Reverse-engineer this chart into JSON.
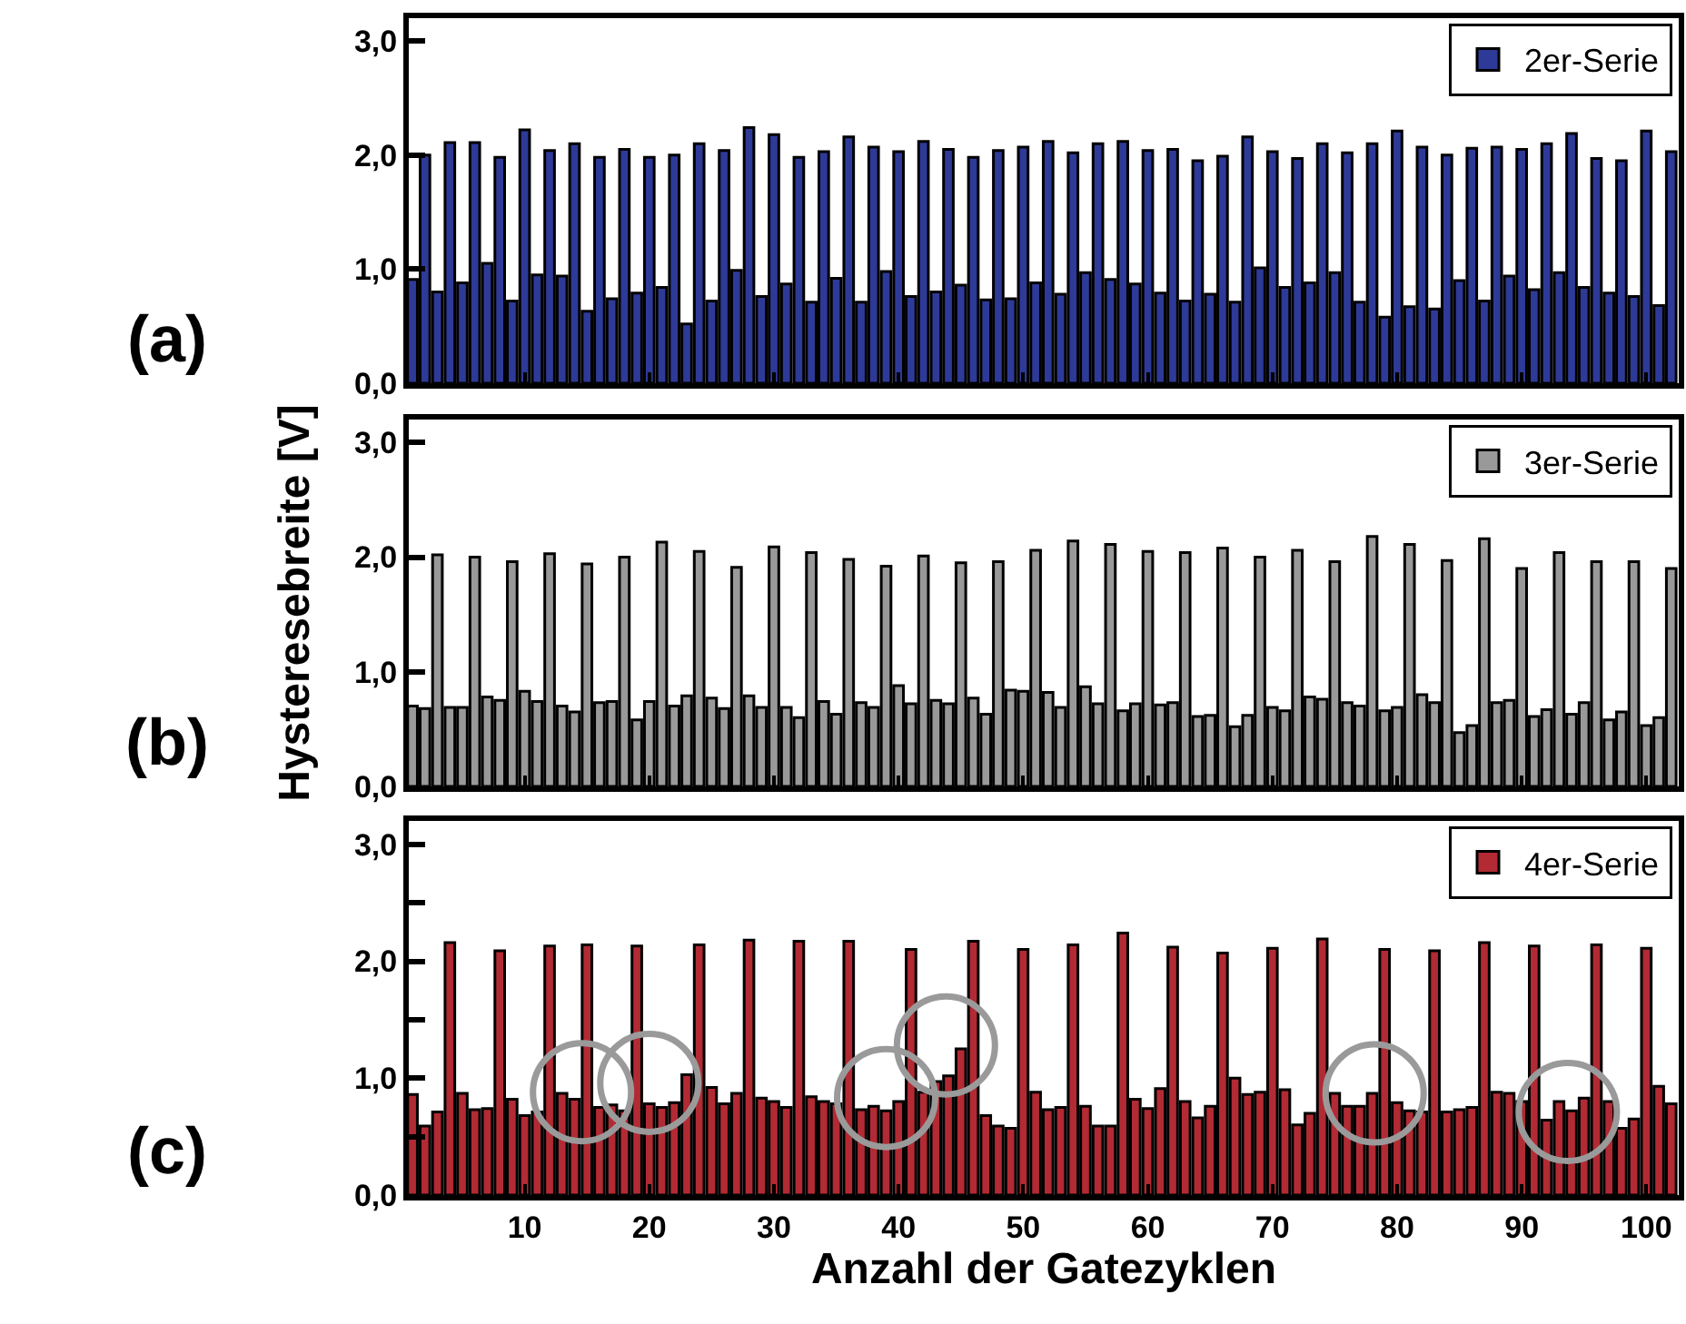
{
  "chart_data": [
    {
      "type": "bar",
      "annotations": [
        "(a)"
      ],
      "x": [
        1,
        2,
        3,
        4,
        5,
        6,
        7,
        8,
        9,
        10,
        11,
        12,
        13,
        14,
        15,
        16,
        17,
        18,
        19,
        20,
        21,
        22,
        23,
        24,
        25,
        26,
        27,
        28,
        29,
        30,
        31,
        32,
        33,
        34,
        35,
        36,
        37,
        38,
        39,
        40,
        41,
        42,
        43,
        44,
        45,
        46,
        47,
        48,
        49,
        50,
        51,
        52,
        53,
        54,
        55,
        56,
        57,
        58,
        59,
        60,
        61,
        62,
        63,
        64,
        65,
        66,
        67,
        68,
        69,
        70,
        71,
        72,
        73,
        74,
        75,
        76,
        77,
        78,
        79,
        80,
        81,
        82,
        83,
        84,
        85,
        86,
        87,
        88,
        89,
        90,
        91,
        92,
        93,
        94,
        95,
        96,
        97,
        98,
        99,
        100,
        101,
        102
      ],
      "series": [
        {
          "name": "2er-Serie",
          "color": "#2e3a97",
          "values": [
            0.91,
            2.0,
            0.8,
            2.11,
            0.88,
            2.11,
            1.05,
            1.98,
            0.72,
            2.22,
            0.95,
            2.04,
            0.94,
            2.1,
            0.63,
            1.98,
            0.74,
            2.05,
            0.79,
            1.98,
            0.84,
            2.0,
            0.52,
            2.1,
            0.72,
            2.04,
            0.99,
            2.24,
            0.76,
            2.18,
            0.87,
            1.98,
            0.71,
            2.03,
            0.92,
            2.16,
            0.71,
            2.07,
            0.98,
            2.03,
            0.76,
            2.12,
            0.8,
            2.05,
            0.86,
            1.98,
            0.73,
            2.04,
            0.74,
            2.07,
            0.88,
            2.12,
            0.78,
            2.02,
            0.97,
            2.1,
            0.91,
            2.12,
            0.87,
            2.04,
            0.79,
            2.05,
            0.72,
            1.95,
            0.78,
            1.99,
            0.71,
            2.16,
            1.01,
            2.03,
            0.84,
            1.97,
            0.88,
            2.1,
            0.97,
            2.02,
            0.71,
            2.1,
            0.58,
            2.21,
            0.67,
            2.07,
            0.65,
            2.0,
            0.9,
            2.06,
            0.72,
            2.07,
            0.94,
            2.05,
            0.82,
            2.1,
            0.97,
            2.19,
            0.84,
            1.97,
            0.79,
            1.95,
            0.76,
            2.21,
            0.68,
            2.03
          ]
        }
      ],
      "xlim": [
        0.7,
        102.6
      ],
      "ylim": [
        0,
        3.2
      ],
      "xticks": [
        10,
        20,
        30,
        40,
        50,
        60,
        70,
        80,
        90,
        100
      ],
      "yticks": [
        {
          "value": 0,
          "label": "0,0"
        },
        {
          "value": 1,
          "label": "1,0"
        },
        {
          "value": 2,
          "label": "2,0"
        },
        {
          "value": 3,
          "label": "3,0"
        }
      ],
      "tick_labels": "y",
      "legend": "top right"
    },
    {
      "type": "bar",
      "annotations": [
        "(b)"
      ],
      "ylabel": "Hysteresebreite [V]",
      "x": [
        1,
        2,
        3,
        4,
        5,
        6,
        7,
        8,
        9,
        10,
        11,
        12,
        13,
        14,
        15,
        16,
        17,
        18,
        19,
        20,
        21,
        22,
        23,
        24,
        25,
        26,
        27,
        28,
        29,
        30,
        31,
        32,
        33,
        34,
        35,
        36,
        37,
        38,
        39,
        40,
        41,
        42,
        43,
        44,
        45,
        46,
        47,
        48,
        49,
        50,
        51,
        52,
        53,
        54,
        55,
        56,
        57,
        58,
        59,
        60,
        61,
        62,
        63,
        64,
        65,
        66,
        67,
        68,
        69,
        70,
        71,
        72,
        73,
        74,
        75,
        76,
        77,
        78,
        79,
        80,
        81,
        82,
        83,
        84,
        85,
        86,
        87,
        88,
        89,
        90,
        91,
        92,
        93,
        94,
        95,
        96,
        97,
        98,
        99,
        100,
        101,
        102
      ],
      "series": [
        {
          "name": "3er-Serie",
          "color": "#999999",
          "values": [
            0.7,
            0.68,
            2.02,
            0.69,
            0.69,
            2.0,
            0.78,
            0.75,
            1.96,
            0.83,
            0.74,
            2.03,
            0.7,
            0.65,
            1.94,
            0.73,
            0.74,
            2.0,
            0.58,
            0.74,
            2.13,
            0.7,
            0.79,
            2.05,
            0.77,
            0.68,
            1.91,
            0.79,
            0.69,
            2.09,
            0.69,
            0.6,
            2.04,
            0.74,
            0.63,
            1.98,
            0.73,
            0.69,
            1.92,
            0.88,
            0.72,
            2.01,
            0.75,
            0.72,
            1.95,
            0.77,
            0.63,
            1.96,
            0.84,
            0.83,
            2.06,
            0.82,
            0.69,
            2.14,
            0.87,
            0.72,
            2.11,
            0.66,
            0.72,
            2.05,
            0.71,
            0.73,
            2.04,
            0.61,
            0.62,
            2.08,
            0.52,
            0.62,
            2.0,
            0.69,
            0.66,
            2.06,
            0.78,
            0.76,
            1.96,
            0.73,
            0.7,
            2.18,
            0.66,
            0.69,
            2.11,
            0.8,
            0.73,
            1.97,
            0.47,
            0.53,
            2.16,
            0.73,
            0.75,
            1.9,
            0.61,
            0.67,
            2.04,
            0.63,
            0.73,
            1.96,
            0.58,
            0.65,
            1.96,
            0.53,
            0.6,
            1.9
          ]
        }
      ],
      "xlim": [
        0.7,
        102.6
      ],
      "ylim": [
        0,
        3.2
      ],
      "xticks": [
        10,
        20,
        30,
        40,
        50,
        60,
        70,
        80,
        90,
        100
      ],
      "yticks": [
        {
          "value": 0,
          "label": "0,0"
        },
        {
          "value": 1,
          "label": "1,0"
        },
        {
          "value": 2,
          "label": "2,0"
        },
        {
          "value": 3,
          "label": "3,0"
        }
      ],
      "tick_labels": "y",
      "legend": "top right"
    },
    {
      "type": "bar",
      "annotations": [
        "(c)"
      ],
      "xlabel": "Anzahl der Gatezyklen",
      "x": [
        1,
        2,
        3,
        4,
        5,
        6,
        7,
        8,
        9,
        10,
        11,
        12,
        13,
        14,
        15,
        16,
        17,
        18,
        19,
        20,
        21,
        22,
        23,
        24,
        25,
        26,
        27,
        28,
        29,
        30,
        31,
        32,
        33,
        34,
        35,
        36,
        37,
        38,
        39,
        40,
        41,
        42,
        43,
        44,
        45,
        46,
        47,
        48,
        49,
        50,
        51,
        52,
        53,
        54,
        55,
        56,
        57,
        58,
        59,
        60,
        61,
        62,
        63,
        64,
        65,
        66,
        67,
        68,
        69,
        70,
        71,
        72,
        73,
        74,
        75,
        76,
        77,
        78,
        79,
        80,
        81,
        82,
        83,
        84,
        85,
        86,
        87,
        88,
        89,
        90,
        91,
        92,
        93,
        94,
        95,
        96,
        97,
        98,
        99,
        100,
        101,
        102
      ],
      "series": [
        {
          "name": "4er-Serie",
          "color": "#b22a33",
          "values": [
            0.86,
            0.59,
            0.71,
            2.16,
            0.87,
            0.73,
            0.74,
            2.09,
            0.82,
            0.68,
            0.71,
            2.13,
            0.87,
            0.82,
            2.14,
            0.75,
            0.77,
            0.72,
            2.13,
            0.78,
            0.75,
            0.79,
            1.03,
            2.14,
            0.92,
            0.78,
            0.87,
            2.18,
            0.83,
            0.8,
            0.75,
            2.17,
            0.84,
            0.8,
            0.78,
            2.17,
            0.73,
            0.76,
            0.72,
            0.8,
            2.1,
            0.88,
            0.97,
            1.02,
            1.25,
            2.17,
            0.68,
            0.59,
            0.57,
            2.1,
            0.88,
            0.73,
            0.75,
            2.14,
            0.76,
            0.59,
            0.59,
            2.24,
            0.82,
            0.74,
            0.91,
            2.12,
            0.8,
            0.66,
            0.76,
            2.07,
            1.0,
            0.86,
            0.88,
            2.11,
            0.9,
            0.6,
            0.7,
            2.19,
            0.87,
            0.76,
            0.76,
            0.87,
            2.1,
            0.79,
            0.72,
            0.71,
            2.09,
            0.71,
            0.73,
            0.75,
            2.16,
            0.88,
            0.87,
            0.8,
            2.13,
            0.64,
            0.8,
            0.72,
            0.83,
            2.14,
            0.8,
            0.57,
            0.65,
            2.11,
            0.93,
            0.78
          ]
        }
      ],
      "xlim": [
        0.7,
        102.6
      ],
      "ylim": [
        0,
        3.2
      ],
      "xticks": [
        10,
        20,
        30,
        40,
        50,
        60,
        70,
        80,
        90,
        100
      ],
      "yticks": [
        {
          "value": 0,
          "label": "0,0"
        },
        {
          "value": 0.5,
          "label": null
        },
        {
          "value": 1,
          "label": "1,0"
        },
        {
          "value": 1.5,
          "label": null
        },
        {
          "value": 2,
          "label": "2,0"
        },
        {
          "value": 2.5,
          "label": null
        },
        {
          "value": 3,
          "label": "3,0"
        }
      ],
      "legend": "top right"
    }
  ]
}
